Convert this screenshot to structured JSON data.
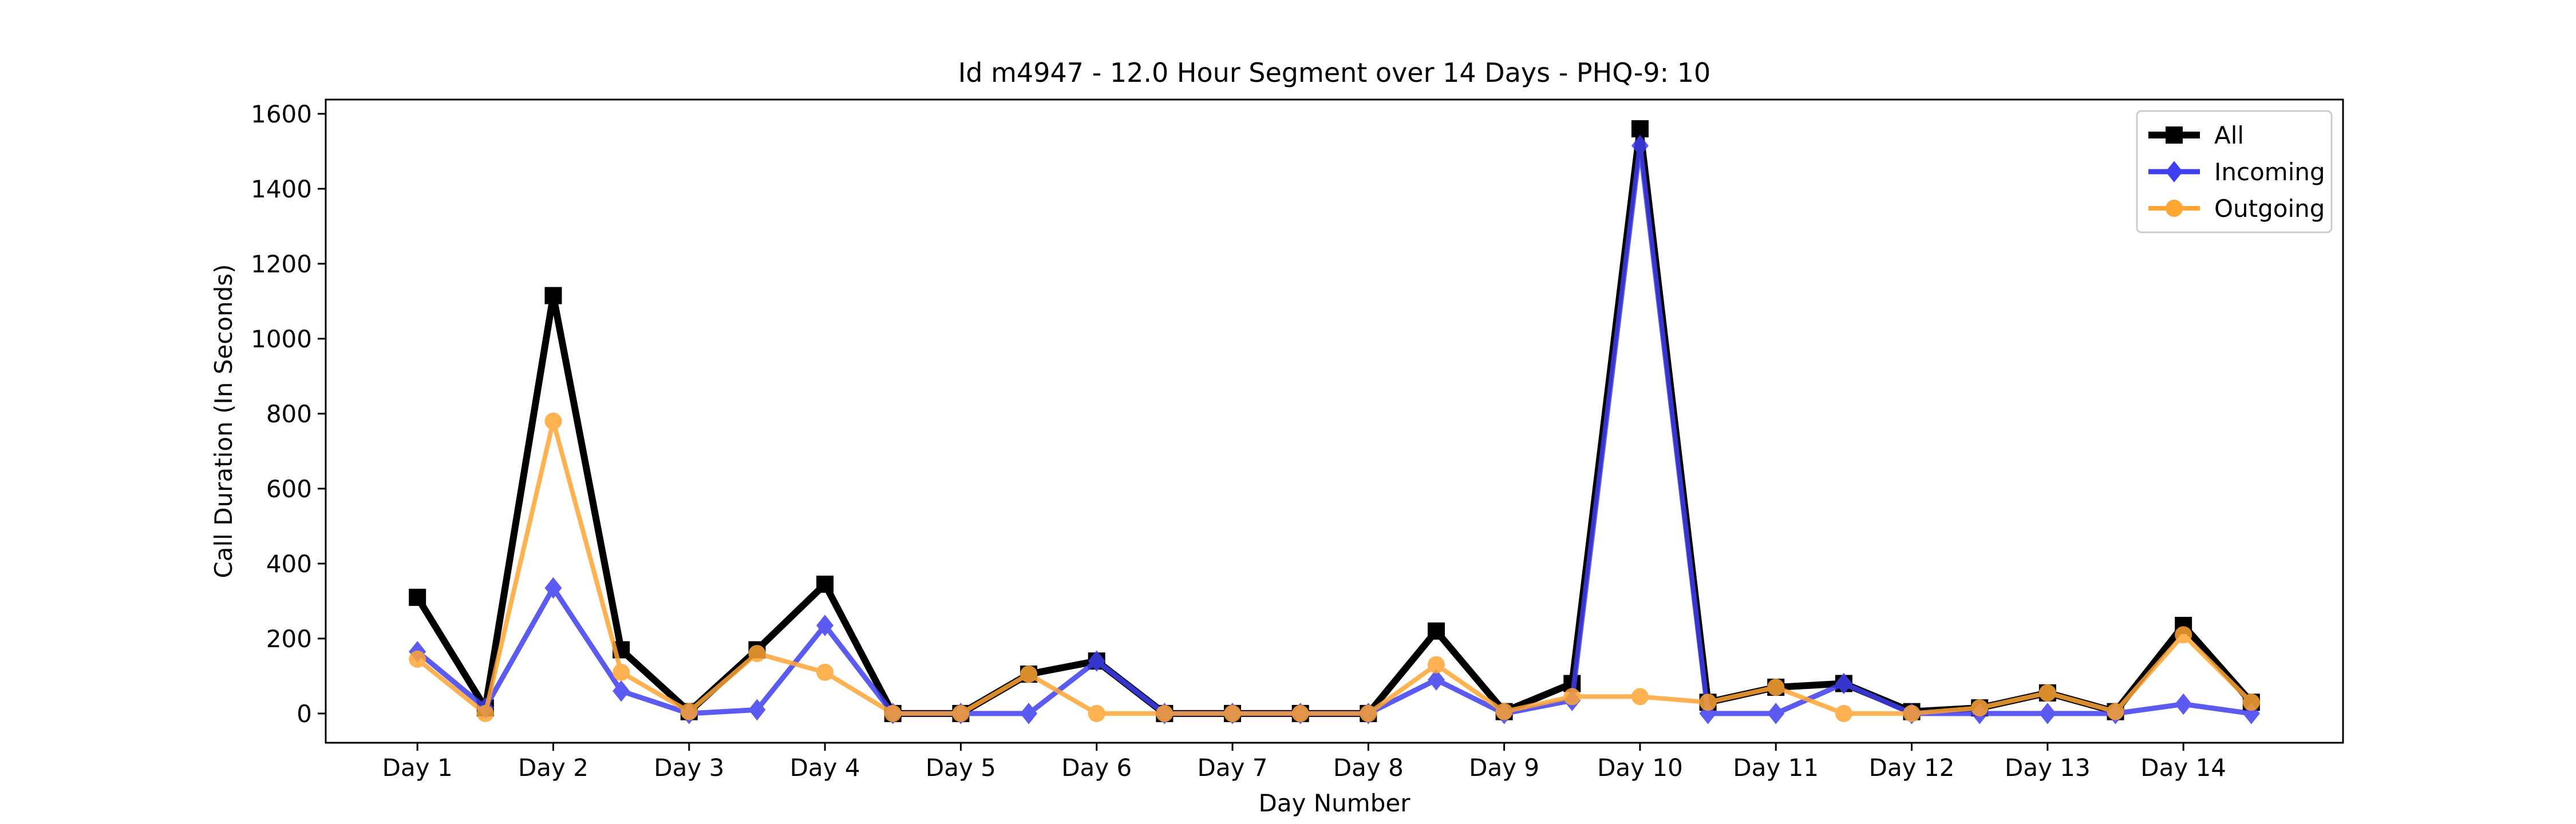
{
  "chart_data": {
    "type": "line",
    "title": "Id m4947 - 12.0 Hour Segment over 14 Days - PHQ-9: 10",
    "x_label": "Day Number",
    "y_label": "Call Duration (In Seconds)",
    "categories": [
      "Day 1",
      null,
      "Day 2",
      null,
      "Day 3",
      null,
      "Day 4",
      null,
      "Day 5",
      null,
      "Day 6",
      null,
      "Day 7",
      null,
      "Day 8",
      null,
      "Day 9",
      null,
      "Day 10",
      null,
      "Day 11",
      null,
      "Day 12",
      null,
      "Day 13",
      null,
      "Day 14",
      null
    ],
    "series": [
      {
        "name": "All",
        "color": "#000000",
        "marker": "square",
        "values": [
          310,
          15,
          1115,
          170,
          5,
          170,
          345,
          0,
          0,
          105,
          140,
          0,
          0,
          0,
          0,
          220,
          5,
          80,
          1560,
          30,
          70,
          80,
          5,
          15,
          55,
          5,
          235,
          30
        ]
      },
      {
        "name": "Incoming",
        "color": "#3f3ff0",
        "marker": "diamond",
        "values": [
          165,
          15,
          335,
          60,
          0,
          10,
          235,
          0,
          0,
          0,
          140,
          0,
          0,
          0,
          0,
          90,
          0,
          35,
          1515,
          0,
          0,
          80,
          0,
          0,
          0,
          0,
          25,
          0
        ]
      },
      {
        "name": "Outgoing",
        "color": "#ffa534",
        "marker": "circle",
        "values": [
          145,
          0,
          780,
          110,
          5,
          160,
          110,
          0,
          0,
          105,
          0,
          0,
          0,
          0,
          0,
          130,
          5,
          45,
          45,
          30,
          70,
          0,
          0,
          15,
          55,
          5,
          210,
          30
        ]
      }
    ],
    "ylim": [
      -78,
      1638
    ],
    "yticks": [
      0,
      200,
      400,
      600,
      800,
      1000,
      1200,
      1400,
      1600
    ],
    "legend": "upper right"
  }
}
